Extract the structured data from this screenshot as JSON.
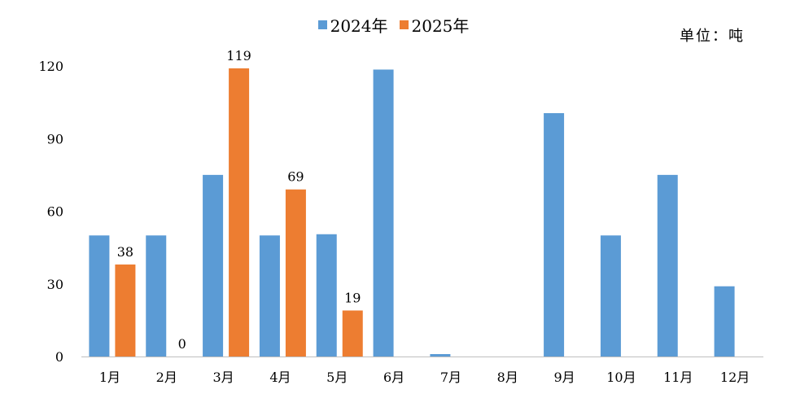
{
  "colors": {
    "series_2024": "#5b9bd5",
    "series_2025": "#ed7d31",
    "axis": "#bfbfbf"
  },
  "unit_label": "单位：吨",
  "chart_data": {
    "type": "bar",
    "categories": [
      "1月",
      "2月",
      "3月",
      "4月",
      "5月",
      "6月",
      "7月",
      "8月",
      "9月",
      "10月",
      "11月",
      "12月"
    ],
    "series": [
      {
        "name": "2024年",
        "values": [
          50,
          50,
          75,
          50,
          50.5,
          118.5,
          1,
          0,
          100.5,
          50,
          75,
          29
        ],
        "show_labels": false
      },
      {
        "name": "2025年",
        "values": [
          38,
          0,
          119,
          69,
          19,
          null,
          null,
          null,
          null,
          null,
          null,
          null
        ],
        "show_labels": true
      }
    ],
    "yticks": [
      0,
      30,
      60,
      90,
      120
    ],
    "ylim": [
      0,
      120
    ],
    "legend_position": "top-center",
    "grid": false
  }
}
